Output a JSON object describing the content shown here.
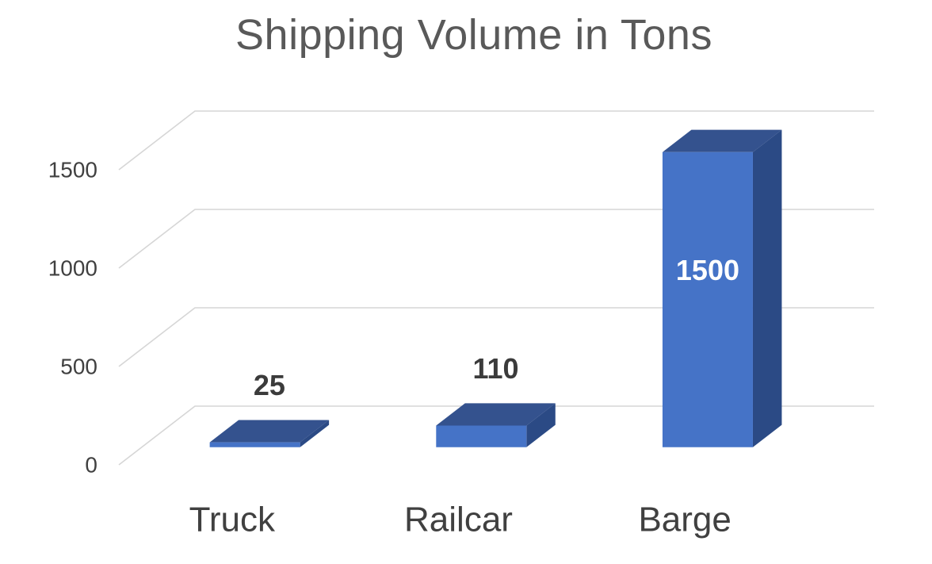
{
  "chart": {
    "title": "Shipping Volume in Tons"
  },
  "chart_data": {
    "type": "bar",
    "style": "3d-clustered-column",
    "title": "Shipping Volume in Tons",
    "xlabel": "",
    "ylabel": "",
    "categories": [
      "Truck",
      "Railcar",
      "Barge"
    ],
    "values": [
      25,
      110,
      1500
    ],
    "data_labels": [
      "25",
      "110",
      "1500"
    ],
    "data_label_placement": [
      "above",
      "above",
      "inside"
    ],
    "yticks": [
      0,
      500,
      1000,
      1500
    ],
    "ytick_labels": [
      "0",
      "500",
      "1000",
      "1500"
    ],
    "ylim": [
      0,
      1500
    ],
    "grid": true,
    "legend": "none",
    "colors": {
      "bar_front": "#4573C7",
      "bar_top": "#34528E",
      "bar_side": "#2B4A85",
      "gridline": "#D6D6D6",
      "title_text": "#595959",
      "axis_text": "#404040",
      "data_label_dark": "#3B3B3B",
      "data_label_light": "#FFFFFF",
      "background": "#FFFFFF"
    }
  }
}
